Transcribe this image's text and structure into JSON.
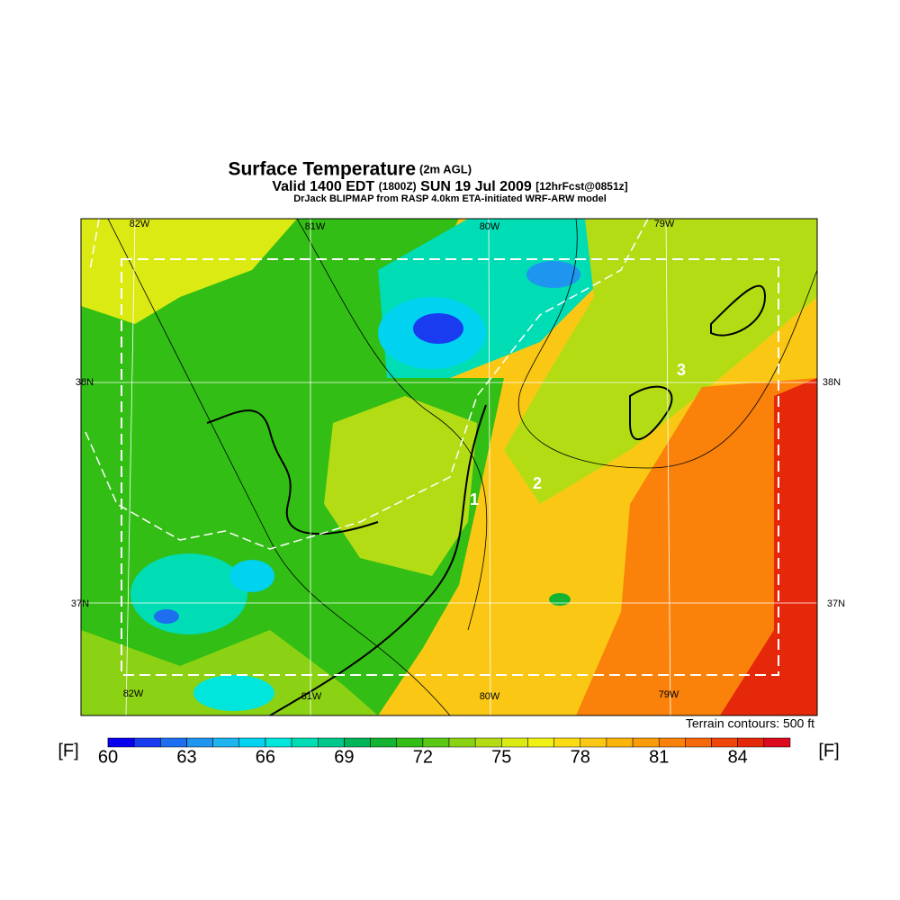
{
  "title": {
    "main": "Surface Temperature",
    "note": "(2m AGL)"
  },
  "subtitle": {
    "valid": "Valid 1400 EDT",
    "utc": "(1800Z)",
    "date": "SUN 19 Jul 2009",
    "forecast": "[12hrFcst@0851z]",
    "model": "DrJack BLIPMAP from RASP 4.0km ETA-initiated WRF-ARW model"
  },
  "axes": {
    "lon": [
      "82W",
      "81W",
      "80W",
      "79W"
    ],
    "lat": [
      "38N",
      "37N"
    ]
  },
  "contour_labels": [
    "1",
    "2",
    "3"
  ],
  "terrain_note": "Terrain contours: 500 ft",
  "colorbar": {
    "unit": "[F]",
    "lim": [
      60,
      86
    ],
    "ticks": [
      60,
      63,
      66,
      69,
      72,
      75,
      78,
      81,
      84
    ],
    "colors": [
      "#0a00f0",
      "#1a3cf0",
      "#1e6ef0",
      "#1e96f0",
      "#1eb4f0",
      "#00d2f0",
      "#00e6dc",
      "#00dcb4",
      "#00c88c",
      "#00b45a",
      "#14b432",
      "#32be14",
      "#5ac814",
      "#8cd214",
      "#b4dc14",
      "#dcea14",
      "#f0f014",
      "#fadc14",
      "#fac814",
      "#fab40a",
      "#fa9b0a",
      "#fa820a",
      "#f5690a",
      "#f0460a",
      "#e6280a",
      "#dc0a1e"
    ]
  }
}
